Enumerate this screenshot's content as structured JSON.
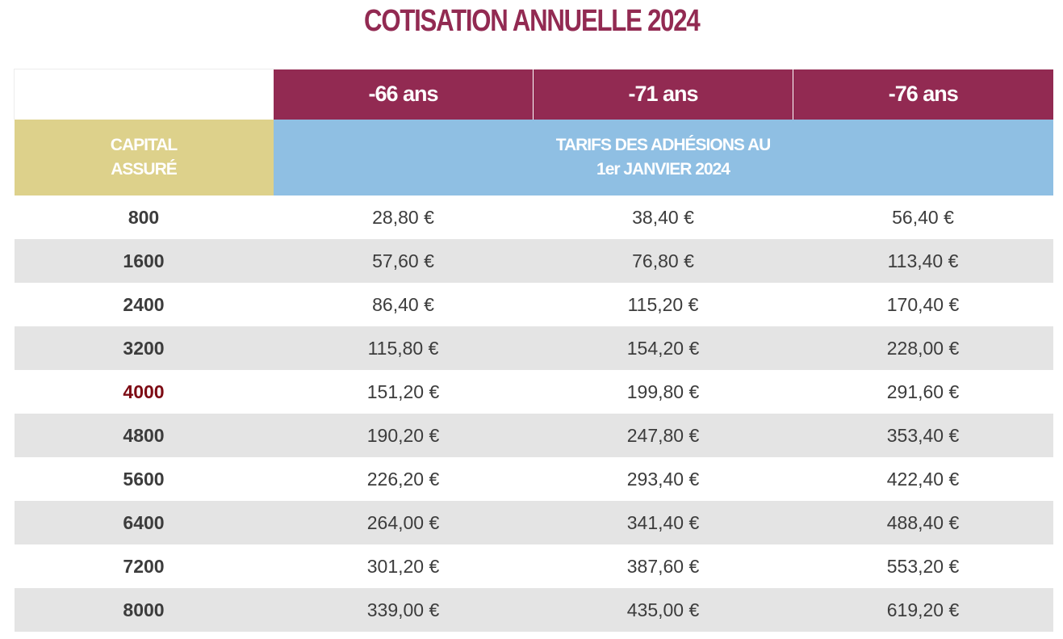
{
  "title": "COTISATION ANNUELLE 2024",
  "age_columns": [
    "-66 ans",
    "-71 ans",
    "-76 ans"
  ],
  "capital_header": [
    "CAPITAL",
    "ASSURÉ"
  ],
  "tarif_header": [
    "TARIFS DES ADHÉSIONS AU",
    "1er JANVIER 2024"
  ],
  "highlighted_capital": "4000",
  "colors": {
    "title": "#922a52",
    "age_header_bg": "#922a52",
    "capital_header_bg": "#ddd18b",
    "tarif_header_bg": "#8fbfe3",
    "striped_row_bg": "#e4e4e4",
    "highlight_text": "#7d0b14"
  },
  "rows": [
    {
      "capital": "800",
      "prices": [
        "28,80 €",
        "38,40 €",
        "56,40 €"
      ]
    },
    {
      "capital": "1600",
      "prices": [
        "57,60 €",
        "76,80 €",
        "113,40 €"
      ]
    },
    {
      "capital": "2400",
      "prices": [
        "86,40 €",
        "115,20 €",
        "170,40 €"
      ]
    },
    {
      "capital": "3200",
      "prices": [
        "115,80 €",
        "154,20 €",
        "228,00 €"
      ]
    },
    {
      "capital": "4000",
      "prices": [
        "151,20 €",
        "199,80 €",
        "291,60 €"
      ]
    },
    {
      "capital": "4800",
      "prices": [
        "190,20 €",
        "247,80 €",
        "353,40 €"
      ]
    },
    {
      "capital": "5600",
      "prices": [
        "226,20 €",
        "293,40 €",
        "422,40 €"
      ]
    },
    {
      "capital": "6400",
      "prices": [
        "264,00 €",
        "341,40 €",
        "488,40 €"
      ]
    },
    {
      "capital": "7200",
      "prices": [
        "301,20 €",
        "387,60 €",
        "553,20 €"
      ]
    },
    {
      "capital": "8000",
      "prices": [
        "339,00 €",
        "435,00 €",
        "619,20 €"
      ]
    }
  ]
}
